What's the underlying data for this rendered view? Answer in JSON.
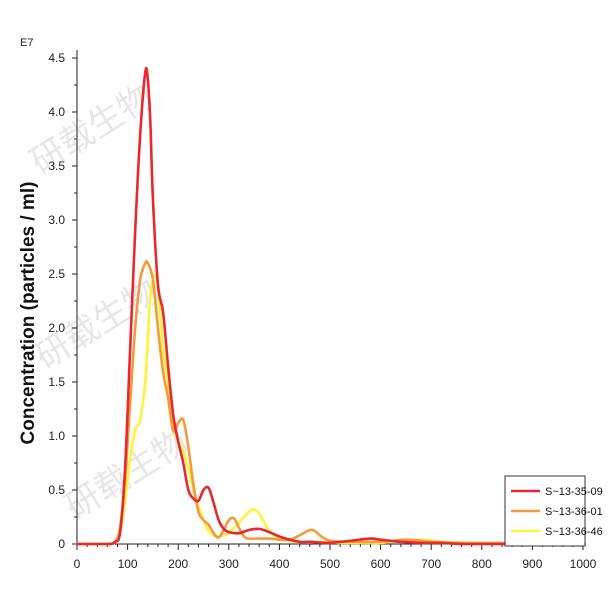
{
  "chart_data": {
    "type": "line",
    "title": "",
    "xlabel": "",
    "ylabel": "Concentration (particles / ml)",
    "y_multiplier_label": "E7",
    "xlim": [
      0,
      1000
    ],
    "ylim": [
      0,
      4.5
    ],
    "x_ticks": [
      "0",
      "100",
      "200",
      "300",
      "400",
      "500",
      "600",
      "700",
      "800",
      "900",
      "1000"
    ],
    "y_ticks": [
      "0",
      "0.5",
      "1.0",
      "1.5",
      "2.0",
      "2.5",
      "3.0",
      "3.5",
      "4.0",
      "4.5"
    ],
    "legend_position": "bottom-right",
    "watermark": "研载生物",
    "series": [
      {
        "name": "S~13-35-09",
        "color": "#e8282c",
        "x": [
          0,
          60,
          75,
          85,
          95,
          105,
          115,
          125,
          135,
          140,
          145,
          150,
          160,
          170,
          180,
          190,
          200,
          210,
          220,
          230,
          240,
          250,
          260,
          270,
          280,
          290,
          300,
          320,
          340,
          360,
          380,
          400,
          420,
          440,
          460,
          500,
          540,
          580,
          600,
          640,
          680,
          720,
          760,
          800,
          900,
          1000
        ],
        "y": [
          0,
          0,
          0.02,
          0.1,
          0.7,
          1.8,
          2.9,
          3.8,
          4.37,
          4.3,
          3.9,
          3.2,
          2.4,
          2.15,
          1.65,
          1.2,
          0.95,
          0.75,
          0.5,
          0.42,
          0.4,
          0.5,
          0.52,
          0.38,
          0.22,
          0.14,
          0.11,
          0.1,
          0.13,
          0.14,
          0.11,
          0.07,
          0.04,
          0.02,
          0.02,
          0.01,
          0.03,
          0.05,
          0.04,
          0.02,
          0.01,
          0.01,
          0.0,
          0.0,
          0.0,
          0.02
        ]
      },
      {
        "name": "S~13-36-01",
        "color": "#f39a3c",
        "x": [
          0,
          60,
          75,
          85,
          95,
          105,
          115,
          125,
          135,
          140,
          150,
          160,
          170,
          180,
          190,
          200,
          210,
          220,
          230,
          240,
          250,
          260,
          270,
          280,
          290,
          300,
          310,
          320,
          330,
          340,
          360,
          380,
          400,
          420,
          440,
          460,
          470,
          480,
          500,
          540,
          600,
          650,
          700,
          750,
          800,
          900,
          960,
          1000
        ],
        "y": [
          0,
          0,
          0.02,
          0.15,
          0.6,
          1.3,
          2.0,
          2.45,
          2.6,
          2.6,
          2.45,
          2.0,
          1.6,
          1.35,
          1.05,
          1.12,
          1.15,
          0.9,
          0.55,
          0.3,
          0.22,
          0.18,
          0.1,
          0.06,
          0.13,
          0.22,
          0.24,
          0.15,
          0.07,
          0.05,
          0.05,
          0.05,
          0.04,
          0.04,
          0.08,
          0.13,
          0.12,
          0.08,
          0.03,
          0.02,
          0.02,
          0.04,
          0.02,
          0.01,
          0.01,
          0.01,
          0.03,
          0.08
        ]
      },
      {
        "name": "S~13-36-46",
        "color": "#fff23a",
        "x": [
          0,
          60,
          75,
          85,
          95,
          105,
          115,
          120,
          125,
          135,
          140,
          145,
          150,
          155,
          160,
          170,
          180,
          190,
          200,
          210,
          220,
          230,
          240,
          250,
          260,
          270,
          280,
          300,
          320,
          330,
          340,
          350,
          360,
          370,
          380,
          400,
          420,
          440,
          480,
          520,
          560,
          600,
          640,
          680,
          720,
          800,
          900,
          1000
        ],
        "y": [
          0,
          0,
          0.02,
          0.1,
          0.4,
          0.8,
          1.05,
          1.1,
          1.15,
          1.5,
          1.9,
          2.3,
          2.45,
          2.48,
          2.38,
          1.8,
          1.5,
          1.1,
          0.95,
          0.85,
          0.7,
          0.5,
          0.35,
          0.22,
          0.12,
          0.08,
          0.07,
          0.1,
          0.2,
          0.25,
          0.3,
          0.32,
          0.28,
          0.2,
          0.12,
          0.05,
          0.03,
          0.02,
          0.02,
          0.01,
          0.01,
          0.01,
          0.03,
          0.04,
          0.02,
          0.01,
          0.01,
          0.03
        ]
      }
    ]
  }
}
